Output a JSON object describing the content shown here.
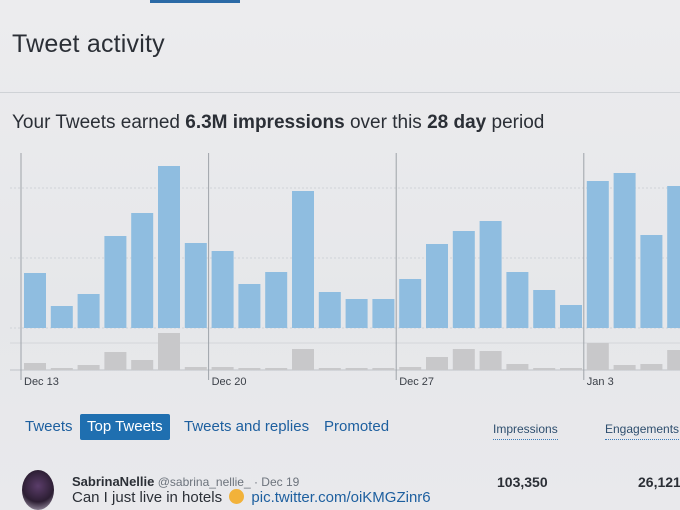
{
  "page": {
    "title": "Tweet activity",
    "summary": {
      "prefix": "Your Tweets earned ",
      "impressions": "6.3M impressions",
      "middle": " over this ",
      "period": "28 day",
      "suffix": " period"
    }
  },
  "chart_data": {
    "type": "bar",
    "series": [
      {
        "name": "impressions",
        "values": [
          55,
          22,
          34,
          92,
          115,
          162,
          85,
          77,
          44,
          56,
          137,
          36,
          29,
          29,
          49,
          84,
          97,
          107,
          56,
          38,
          23,
          147,
          155,
          93,
          142
        ]
      },
      {
        "name": "engagements",
        "values": [
          7,
          2,
          5,
          18,
          10,
          37,
          3,
          3,
          2,
          2,
          21,
          2,
          2,
          2,
          3,
          13,
          21,
          19,
          6,
          2,
          2,
          27,
          5,
          6,
          20
        ]
      }
    ],
    "xtick_labels": [
      "Dec 13",
      "Dec 20",
      "Dec 27",
      "Jan 3"
    ],
    "xtick_index": [
      0,
      7,
      14,
      21
    ],
    "colors": {
      "impressions": "#8fbde0",
      "engagements": "#c8c8ca"
    },
    "grid": true
  },
  "tabs": [
    {
      "label": "Tweets",
      "active": false
    },
    {
      "label": "Top Tweets",
      "active": true
    },
    {
      "label": "Tweets and replies",
      "active": false
    },
    {
      "label": "Promoted",
      "active": false
    }
  ],
  "columns": {
    "impressions": "Impressions",
    "engagements": "Engagements"
  },
  "tweet": {
    "name": "SabrinaNellie",
    "handle": "@sabrina_nellie_",
    "date": "· Dec 19",
    "text": "Can I just live in hotels",
    "emoji": "relieved-face",
    "link": "pic.twitter.com/oiKMGZinr6",
    "impressions": "103,350",
    "engagements": "26,121"
  }
}
